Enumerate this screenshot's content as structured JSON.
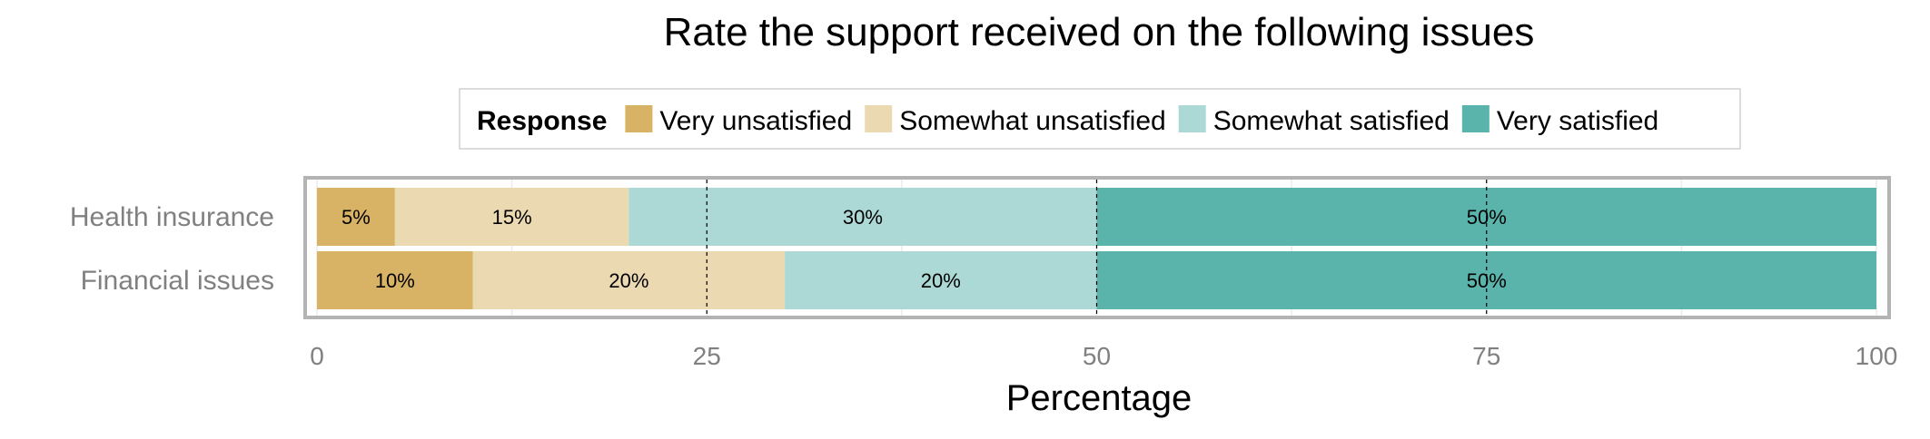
{
  "chart_data": {
    "type": "bar",
    "orientation": "horizontal",
    "stacked": true,
    "title": "Rate the support received on the following issues",
    "xlabel": "Percentage",
    "ylabel": "",
    "xlim": [
      0,
      100
    ],
    "xticks": [
      0,
      25,
      50,
      75,
      100
    ],
    "legend": {
      "title": "Response",
      "position": "top"
    },
    "categories": [
      "Health insurance",
      "Financial issues"
    ],
    "series": [
      {
        "name": "Very unsatisfied",
        "color": "#d8b365",
        "values": [
          5,
          10
        ],
        "labels": [
          "5%",
          "10%"
        ]
      },
      {
        "name": "Somewhat unsatisfied",
        "color": "#ebd9b2",
        "values": [
          15,
          20
        ],
        "labels": [
          "15%",
          "20%"
        ]
      },
      {
        "name": "Somewhat satisfied",
        "color": "#acd9d5",
        "values": [
          30,
          20
        ],
        "labels": [
          "30%",
          "20%"
        ]
      },
      {
        "name": "Very satisfied",
        "color": "#5ab4ac",
        "values": [
          50,
          50
        ],
        "labels": [
          "50%",
          "50%"
        ]
      }
    ],
    "grid": true
  }
}
